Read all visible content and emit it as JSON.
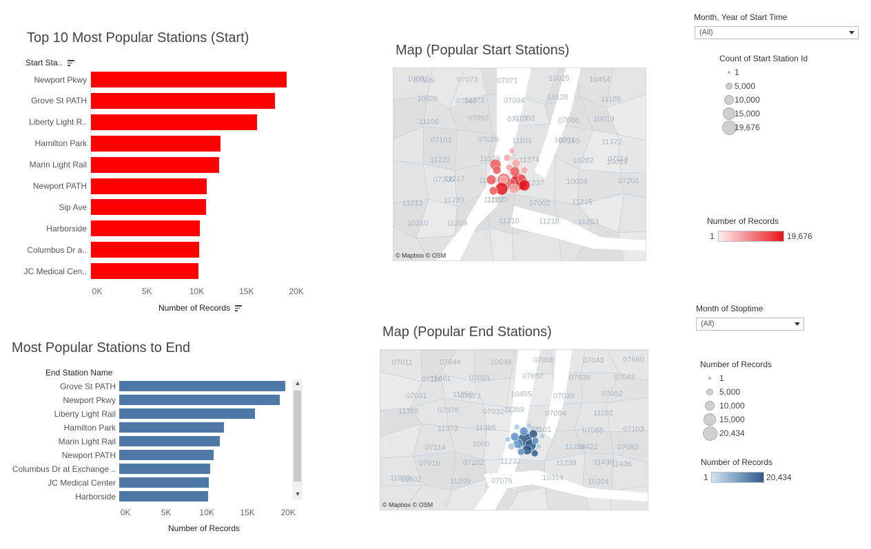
{
  "start_chart": {
    "title": "Top 10 Most Popular Stations (Start)",
    "column_header": "Start Sta..",
    "x_label": "Number of Records",
    "ticks": [
      "0K",
      "5K",
      "10K",
      "15K",
      "20K"
    ],
    "chart_data": {
      "type": "bar",
      "categories": [
        "Newport Pkwy",
        "Grove St PATH",
        "Liberty Light R..",
        "Hamilton Park",
        "Marin Light Rail",
        "Newport PATH",
        "Sip Ave",
        "Harborside",
        "Columbus Dr a..",
        "JC Medical Cen.."
      ],
      "values": [
        19676,
        18500,
        16700,
        13000,
        12900,
        11600,
        11550,
        10900,
        10850,
        10800
      ],
      "xlim": [
        0,
        22000
      ],
      "color": "#ff0000"
    }
  },
  "end_chart": {
    "title": "Most Popular Stations to End",
    "column_header": "End Station Name",
    "x_label": "Number of Records",
    "ticks": [
      "0K",
      "5K",
      "10K",
      "15K",
      "20K"
    ],
    "chart_data": {
      "type": "bar",
      "categories": [
        "Grove St PATH",
        "Newport Pkwy",
        "Liberty Light Rail",
        "Hamilton Park",
        "Marin Light Rail",
        "Newport PATH",
        "Columbus Dr at Exchange ..",
        "JC Medical Center",
        "Harborside"
      ],
      "values": [
        20434,
        19700,
        16700,
        12900,
        12400,
        11600,
        11200,
        11000,
        10900
      ],
      "xlim": [
        0,
        21000
      ],
      "color": "#4e79a7"
    }
  },
  "map_start": {
    "title": "Map (Popular Start Stations)",
    "attribution": "© Mapbox © OSM",
    "zip_labels": [
      "10031",
      "07073",
      "07071",
      "10025",
      "10454",
      "07109",
      "07047",
      "07094",
      "10128",
      "11105",
      "10026",
      "11371",
      "07107",
      "07086",
      "10019",
      "11106",
      "07097",
      "07032",
      "10001",
      "11372",
      "07103",
      "07029",
      "11101",
      "07105",
      "10014",
      "11222",
      "11378",
      "11374",
      "10282",
      "07114",
      "07305",
      "11249",
      "11237",
      "10004",
      "07201",
      "11217",
      "11207",
      "07002",
      "11215",
      "11213",
      "11239",
      "11220",
      "11218",
      "11203",
      "10310",
      "11209",
      "11210"
    ]
  },
  "map_end": {
    "title": "Map (Popular End Stations)",
    "attribution": "© Mapbox © OSM",
    "zip_labels": [
      "07011",
      "07644",
      "10034",
      "07006",
      "07043",
      "07660",
      "10461",
      "07021",
      "07657",
      "07936",
      "07042",
      "07110",
      "07073",
      "10455",
      "07039",
      "07052",
      "07031",
      "11356",
      "11359",
      "07094",
      "11102",
      "11355",
      "07078",
      "07032",
      "11101",
      "07088",
      "07103",
      "11373",
      "11385",
      "11415",
      "11422",
      "07083",
      "07114",
      "1000",
      "11216",
      "11208",
      "11436",
      "07016",
      "07202",
      "11232",
      "11239",
      "11430",
      "10302",
      "11209",
      "07076",
      "10314",
      "10304",
      "11693"
    ]
  },
  "filters": {
    "start_time": {
      "label": "Month, Year of Start Time",
      "value": "(All)"
    },
    "stoptime": {
      "label": "Month of Stoptime",
      "value": "(All)"
    }
  },
  "legend_start_size": {
    "title": "Count of Start Station Id",
    "items": [
      "1",
      "5,000",
      "10,000",
      "15,000",
      "19,676"
    ]
  },
  "legend_start_color": {
    "title": "Number of Records",
    "min": "1",
    "max": "19,676",
    "color": "#e8141c"
  },
  "legend_end_size": {
    "title": "Number of Records",
    "items": [
      "1",
      "5,000",
      "10,000",
      "15,000",
      "20,434"
    ]
  },
  "legend_end_color": {
    "title": "Number of Records",
    "min": "1",
    "max": "20,434",
    "color": "#2f5b8a"
  }
}
